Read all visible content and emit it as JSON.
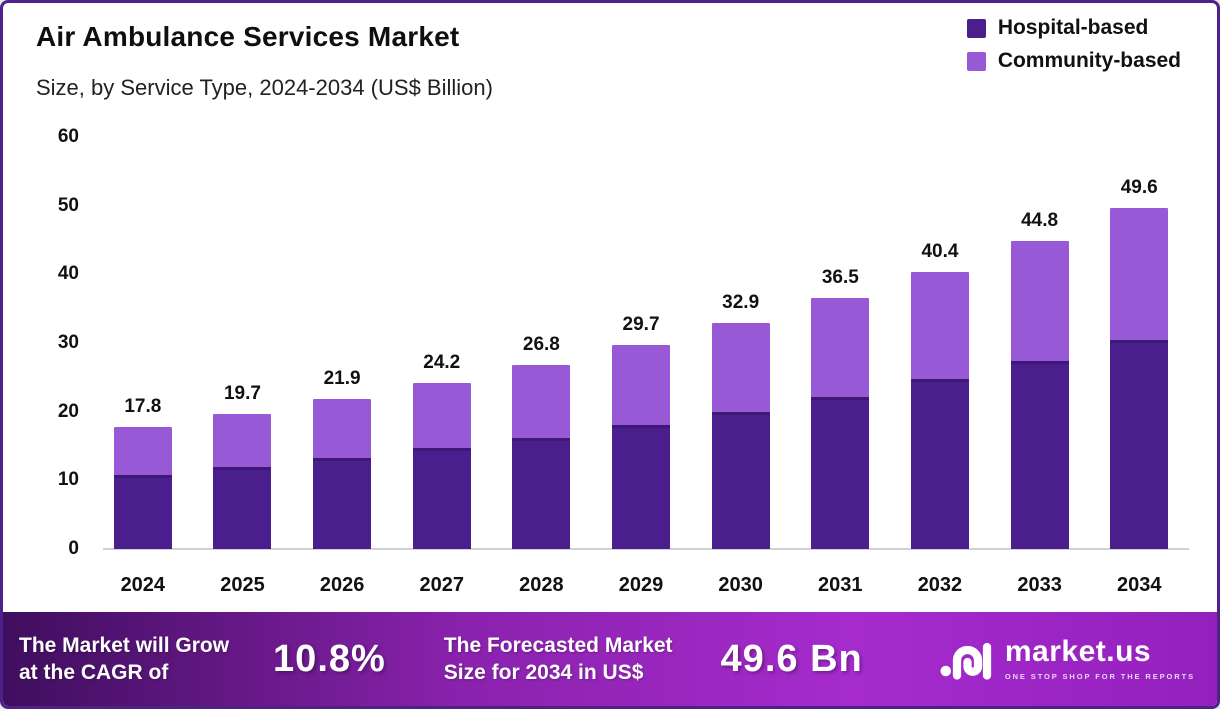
{
  "header": {
    "title": "Air Ambulance Services Market",
    "subtitle": "Size, by Service Type, 2024-2034 (US$ Billion)"
  },
  "legend": [
    {
      "label": "Hospital-based",
      "color": "#4b1e8e"
    },
    {
      "label": "Community-based",
      "color": "#9859d6"
    }
  ],
  "chart_data": {
    "type": "bar",
    "stacked": true,
    "title": "Air Ambulance Services Market Size, by Service Type, 2024-2034 (US$ Billion)",
    "xlabel": "",
    "ylabel": "",
    "categories": [
      "2024",
      "2025",
      "2026",
      "2027",
      "2028",
      "2029",
      "2030",
      "2031",
      "2032",
      "2033",
      "2034"
    ],
    "series": [
      {
        "name": "Hospital-based",
        "color": "#4b1e8e",
        "values": [
          10.8,
          12.0,
          13.2,
          14.7,
          16.2,
          18.0,
          20.0,
          22.2,
          24.7,
          27.4,
          30.4
        ]
      },
      {
        "name": "Community-based",
        "color": "#9859d6",
        "values": [
          7.0,
          7.7,
          8.7,
          9.5,
          10.6,
          11.7,
          12.9,
          14.3,
          15.7,
          17.4,
          19.2
        ]
      }
    ],
    "totals": [
      17.8,
      19.7,
      21.9,
      24.2,
      26.8,
      29.7,
      32.9,
      36.5,
      40.4,
      44.8,
      49.6
    ],
    "ylim": [
      0,
      60
    ],
    "yticks": [
      0,
      10,
      20,
      30,
      40,
      50,
      60
    ],
    "grid": false,
    "legend_position": "top-right"
  },
  "footer": {
    "cagr_label_line1": "The Market will Grow",
    "cagr_label_line2": "at the CAGR of",
    "cagr_value": "10.8%",
    "forecast_label_line1": "The Forecasted Market",
    "forecast_label_line2": "Size for 2034 in US$",
    "forecast_value": "49.6 Bn",
    "brand": {
      "name": "market.us",
      "tagline": "ONE STOP SHOP FOR THE REPORTS"
    }
  },
  "colors": {
    "hospital": "#4b1e8e",
    "community": "#9859d6",
    "border": "#4e2187",
    "baseline": "#d2d2d2",
    "footer_gradient_start": "#3f0e5e",
    "footer_gradient_mid": "#a62bcd",
    "footer_gradient_end": "#9320bd"
  }
}
